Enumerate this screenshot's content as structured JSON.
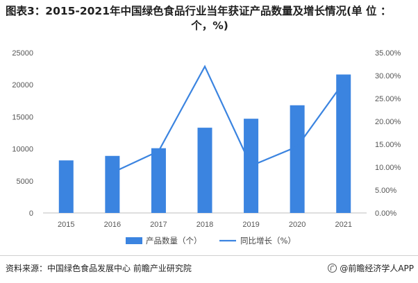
{
  "title_line1": "图表3：2015-2021年中国绿色食品行业当年获证产品数量及增长情况(单 位 ：",
  "title_line2": "个，%)",
  "source": "资料来源：中国绿色食品发展中心 前瞻产业研究院",
  "brand": "@前瞻经济学人APP",
  "colors": {
    "bar": "#3b84e0",
    "line": "#3b84e0",
    "axis": "#bfbfbf"
  },
  "chart_data": {
    "type": "bar",
    "categories": [
      "2015",
      "2016",
      "2017",
      "2018",
      "2019",
      "2020",
      "2021"
    ],
    "series": [
      {
        "name": "产品数量（个）",
        "type": "bar",
        "axis": "left",
        "values": [
          8200,
          8900,
          10100,
          13300,
          14700,
          16800,
          21600
        ]
      },
      {
        "name": "同比增长（%）",
        "type": "line",
        "axis": "right",
        "values": [
          null,
          8.8,
          13.5,
          32.0,
          10.3,
          14.5,
          28.5
        ]
      }
    ],
    "ylim_left": [
      0,
      25000
    ],
    "yticks_left": [
      "0",
      "5000",
      "10000",
      "15000",
      "20000",
      "25000"
    ],
    "ylim_right": [
      0,
      35
    ],
    "yticks_right": [
      "0.00%",
      "5.00%",
      "10.00%",
      "15.00%",
      "20.00%",
      "25.00%",
      "30.00%",
      "35.00%"
    ],
    "legend_position": "bottom",
    "grid": false
  }
}
